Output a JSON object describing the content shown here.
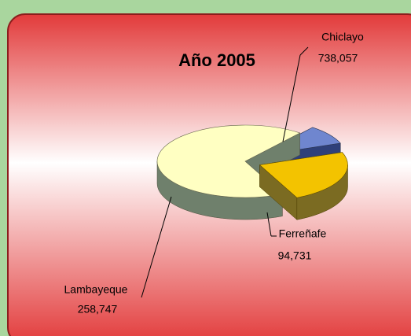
{
  "chart_data": {
    "type": "pie",
    "title": "Año 2005",
    "categories": [
      "Chiclayo",
      "Ferreñafe",
      "Lambayeque"
    ],
    "values": [
      738057,
      94731,
      258747
    ],
    "value_labels": [
      "738,057",
      "94,731",
      "258,747"
    ],
    "colors": [
      "#ffffc2",
      "#6f86cf",
      "#f3c300"
    ]
  }
}
